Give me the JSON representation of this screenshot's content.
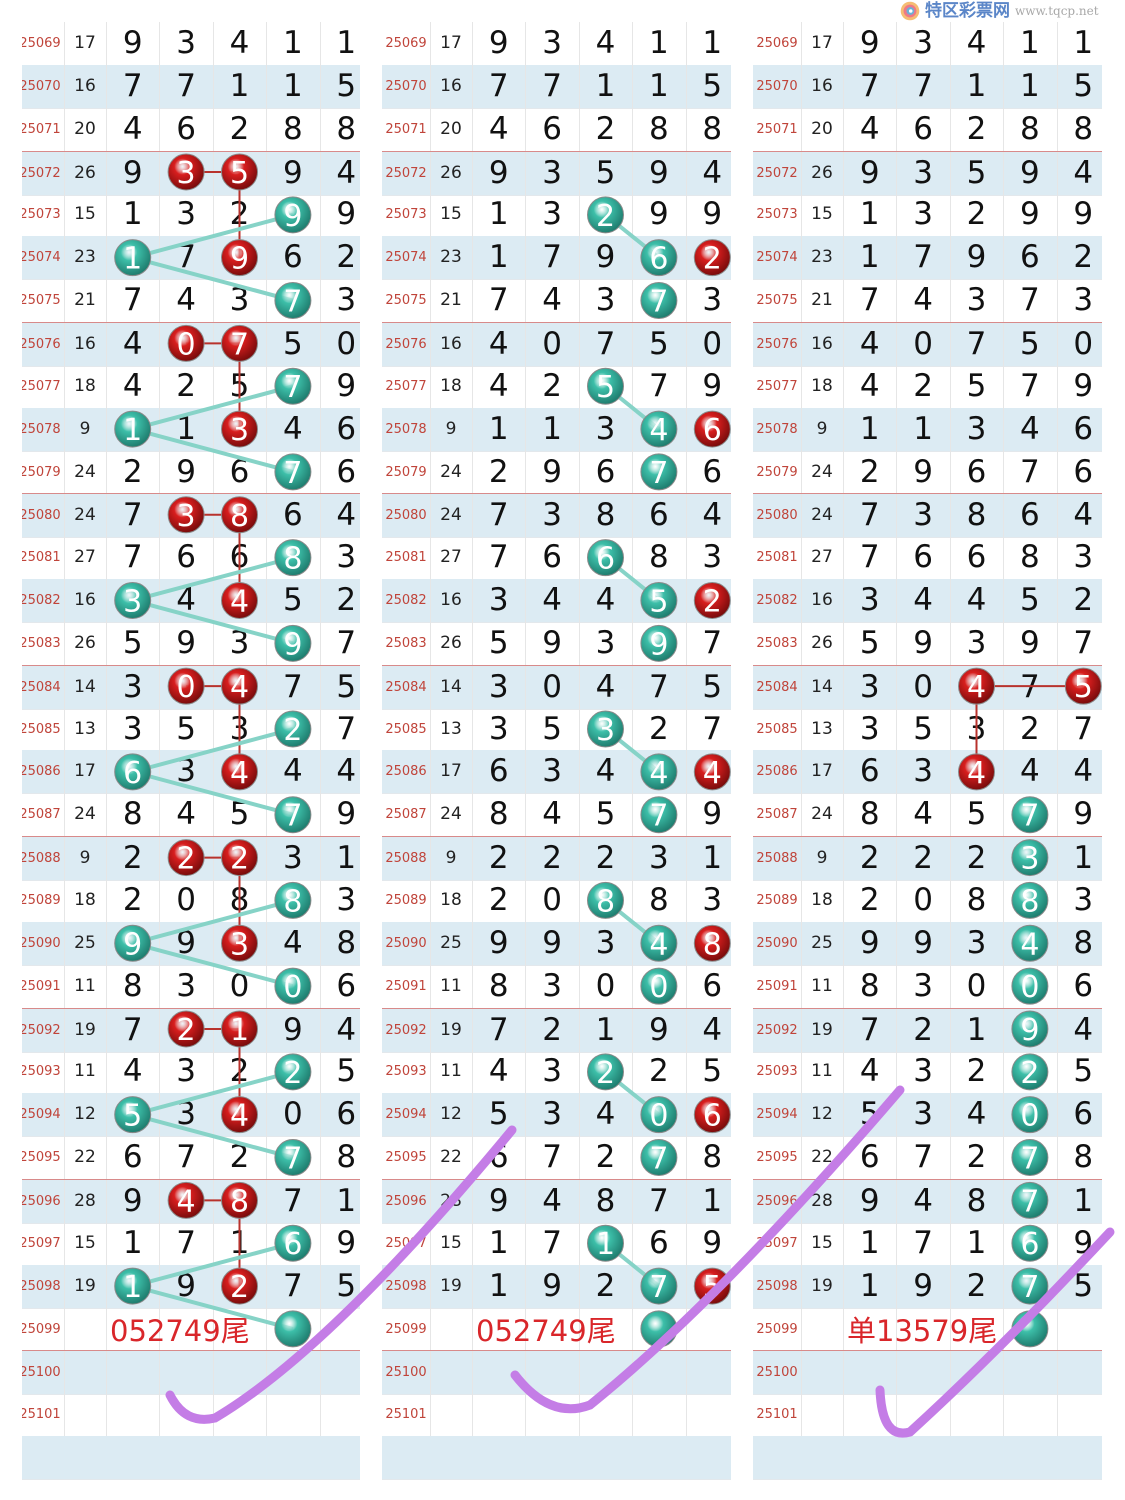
{
  "rows": [
    {
      "period": "25069",
      "sum": "17",
      "digits": [
        "9",
        "3",
        "4",
        "1",
        "1"
      ]
    },
    {
      "period": "25070",
      "sum": "16",
      "digits": [
        "7",
        "7",
        "1",
        "1",
        "5"
      ]
    },
    {
      "period": "25071",
      "sum": "20",
      "digits": [
        "4",
        "6",
        "2",
        "8",
        "8"
      ]
    },
    {
      "period": "25072",
      "sum": "26",
      "digits": [
        "9",
        "3",
        "5",
        "9",
        "4"
      ]
    },
    {
      "period": "25073",
      "sum": "15",
      "digits": [
        "1",
        "3",
        "2",
        "9",
        "9"
      ]
    },
    {
      "period": "25074",
      "sum": "23",
      "digits": [
        "1",
        "7",
        "9",
        "6",
        "2"
      ]
    },
    {
      "period": "25075",
      "sum": "21",
      "digits": [
        "7",
        "4",
        "3",
        "7",
        "3"
      ]
    },
    {
      "period": "25076",
      "sum": "16",
      "digits": [
        "4",
        "0",
        "7",
        "5",
        "0"
      ]
    },
    {
      "period": "25077",
      "sum": "18",
      "digits": [
        "4",
        "2",
        "5",
        "7",
        "9"
      ]
    },
    {
      "period": "25078",
      "sum": "9",
      "digits": [
        "1",
        "1",
        "3",
        "4",
        "6"
      ]
    },
    {
      "period": "25079",
      "sum": "24",
      "digits": [
        "2",
        "9",
        "6",
        "7",
        "6"
      ]
    },
    {
      "period": "25080",
      "sum": "24",
      "digits": [
        "7",
        "3",
        "8",
        "6",
        "4"
      ]
    },
    {
      "period": "25081",
      "sum": "27",
      "digits": [
        "7",
        "6",
        "6",
        "8",
        "3"
      ]
    },
    {
      "period": "25082",
      "sum": "16",
      "digits": [
        "3",
        "4",
        "4",
        "5",
        "2"
      ]
    },
    {
      "period": "25083",
      "sum": "26",
      "digits": [
        "5",
        "9",
        "3",
        "9",
        "7"
      ]
    },
    {
      "period": "25084",
      "sum": "14",
      "digits": [
        "3",
        "0",
        "4",
        "7",
        "5"
      ]
    },
    {
      "period": "25085",
      "sum": "13",
      "digits": [
        "3",
        "5",
        "3",
        "2",
        "7"
      ]
    },
    {
      "period": "25086",
      "sum": "17",
      "digits": [
        "6",
        "3",
        "4",
        "4",
        "4"
      ]
    },
    {
      "period": "25087",
      "sum": "24",
      "digits": [
        "8",
        "4",
        "5",
        "7",
        "9"
      ]
    },
    {
      "period": "25088",
      "sum": "9",
      "digits": [
        "2",
        "2",
        "2",
        "3",
        "1"
      ]
    },
    {
      "period": "25089",
      "sum": "18",
      "digits": [
        "2",
        "0",
        "8",
        "8",
        "3"
      ]
    },
    {
      "period": "25090",
      "sum": "25",
      "digits": [
        "9",
        "9",
        "3",
        "4",
        "8"
      ]
    },
    {
      "period": "25091",
      "sum": "11",
      "digits": [
        "8",
        "3",
        "0",
        "0",
        "6"
      ]
    },
    {
      "period": "25092",
      "sum": "19",
      "digits": [
        "7",
        "2",
        "1",
        "9",
        "4"
      ]
    },
    {
      "period": "25093",
      "sum": "11",
      "digits": [
        "4",
        "3",
        "2",
        "2",
        "5"
      ]
    },
    {
      "period": "25094",
      "sum": "12",
      "digits": [
        "5",
        "3",
        "4",
        "0",
        "6"
      ]
    },
    {
      "period": "25095",
      "sum": "22",
      "digits": [
        "6",
        "7",
        "2",
        "7",
        "8"
      ]
    },
    {
      "period": "25096",
      "sum": "28",
      "digits": [
        "9",
        "4",
        "8",
        "7",
        "1"
      ]
    },
    {
      "period": "25097",
      "sum": "15",
      "digits": [
        "1",
        "7",
        "1",
        "6",
        "9"
      ]
    },
    {
      "period": "25098",
      "sum": "19",
      "digits": [
        "1",
        "9",
        "2",
        "7",
        "5"
      ]
    },
    {
      "period": "25099",
      "sum": "",
      "digits": [
        "",
        "",
        "",
        "",
        ""
      ]
    },
    {
      "period": "25100",
      "sum": "",
      "digits": [
        "",
        "",
        "",
        "",
        ""
      ]
    },
    {
      "period": "25101",
      "sum": "",
      "digits": [
        "",
        "",
        "",
        "",
        ""
      ]
    }
  ],
  "colors": {
    "red": "#d81e1e",
    "teal": "#3dbfa9",
    "red_line": "#b8322c",
    "teal_line": "#86d3c7",
    "check": "#c47de6",
    "period": "#c0443a"
  },
  "logo": {
    "name": "特区彩票网",
    "url": "www.tqcp.net"
  },
  "panels": [
    {
      "note": "052749尾",
      "balls": [
        [
          "25072",
          1,
          "r"
        ],
        [
          "25072",
          2,
          "r"
        ],
        [
          "25073",
          3,
          "t"
        ],
        [
          "25074",
          0,
          "t"
        ],
        [
          "25074",
          2,
          "r"
        ],
        [
          "25075",
          3,
          "t"
        ],
        [
          "25076",
          1,
          "r"
        ],
        [
          "25076",
          2,
          "r"
        ],
        [
          "25077",
          3,
          "t"
        ],
        [
          "25078",
          0,
          "t"
        ],
        [
          "25078",
          2,
          "r"
        ],
        [
          "25079",
          3,
          "t"
        ],
        [
          "25080",
          1,
          "r"
        ],
        [
          "25080",
          2,
          "r"
        ],
        [
          "25081",
          3,
          "t"
        ],
        [
          "25082",
          0,
          "t"
        ],
        [
          "25082",
          2,
          "r"
        ],
        [
          "25083",
          3,
          "t"
        ],
        [
          "25084",
          1,
          "r"
        ],
        [
          "25084",
          2,
          "r"
        ],
        [
          "25085",
          3,
          "t"
        ],
        [
          "25086",
          0,
          "t"
        ],
        [
          "25086",
          2,
          "r"
        ],
        [
          "25087",
          3,
          "t"
        ],
        [
          "25088",
          1,
          "r"
        ],
        [
          "25088",
          2,
          "r"
        ],
        [
          "25089",
          3,
          "t"
        ],
        [
          "25090",
          0,
          "t"
        ],
        [
          "25090",
          2,
          "r"
        ],
        [
          "25091",
          3,
          "t"
        ],
        [
          "25092",
          1,
          "r"
        ],
        [
          "25092",
          2,
          "r"
        ],
        [
          "25093",
          3,
          "t"
        ],
        [
          "25094",
          0,
          "t"
        ],
        [
          "25094",
          2,
          "r"
        ],
        [
          "25095",
          3,
          "t"
        ],
        [
          "25096",
          1,
          "r"
        ],
        [
          "25096",
          2,
          "r"
        ],
        [
          "25097",
          3,
          "t"
        ],
        [
          "25098",
          0,
          "t"
        ],
        [
          "25098",
          2,
          "r"
        ],
        [
          "25099",
          3,
          "t"
        ]
      ],
      "links": [
        [
          "25072",
          1,
          "25072",
          2,
          "r"
        ],
        [
          "25072",
          2,
          "25074",
          2,
          "r"
        ],
        [
          "25073",
          3,
          "25074",
          0,
          "t"
        ],
        [
          "25074",
          0,
          "25075",
          3,
          "t"
        ],
        [
          "25076",
          1,
          "25076",
          2,
          "r"
        ],
        [
          "25076",
          2,
          "25078",
          2,
          "r"
        ],
        [
          "25077",
          3,
          "25078",
          0,
          "t"
        ],
        [
          "25078",
          0,
          "25079",
          3,
          "t"
        ],
        [
          "25080",
          1,
          "25080",
          2,
          "r"
        ],
        [
          "25080",
          2,
          "25082",
          2,
          "r"
        ],
        [
          "25081",
          3,
          "25082",
          0,
          "t"
        ],
        [
          "25082",
          0,
          "25083",
          3,
          "t"
        ],
        [
          "25084",
          1,
          "25084",
          2,
          "r"
        ],
        [
          "25084",
          2,
          "25086",
          2,
          "r"
        ],
        [
          "25085",
          3,
          "25086",
          0,
          "t"
        ],
        [
          "25086",
          0,
          "25087",
          3,
          "t"
        ],
        [
          "25088",
          1,
          "25088",
          2,
          "r"
        ],
        [
          "25088",
          2,
          "25090",
          2,
          "r"
        ],
        [
          "25089",
          3,
          "25090",
          0,
          "t"
        ],
        [
          "25090",
          0,
          "25091",
          3,
          "t"
        ],
        [
          "25092",
          1,
          "25092",
          2,
          "r"
        ],
        [
          "25092",
          2,
          "25094",
          2,
          "r"
        ],
        [
          "25093",
          3,
          "25094",
          0,
          "t"
        ],
        [
          "25094",
          0,
          "25095",
          3,
          "t"
        ],
        [
          "25096",
          1,
          "25096",
          2,
          "r"
        ],
        [
          "25096",
          2,
          "25098",
          2,
          "r"
        ],
        [
          "25097",
          3,
          "25098",
          0,
          "t"
        ],
        [
          "25098",
          0,
          "25099",
          3,
          "t"
        ]
      ]
    },
    {
      "note": "052749尾",
      "balls": [
        [
          "25073",
          2,
          "t"
        ],
        [
          "25074",
          3,
          "t"
        ],
        [
          "25074",
          4,
          "r"
        ],
        [
          "25075",
          3,
          "t"
        ],
        [
          "25077",
          2,
          "t"
        ],
        [
          "25078",
          3,
          "t"
        ],
        [
          "25078",
          4,
          "r"
        ],
        [
          "25079",
          3,
          "t"
        ],
        [
          "25081",
          2,
          "t"
        ],
        [
          "25082",
          3,
          "t"
        ],
        [
          "25082",
          4,
          "r"
        ],
        [
          "25083",
          3,
          "t"
        ],
        [
          "25085",
          2,
          "t"
        ],
        [
          "25086",
          3,
          "t"
        ],
        [
          "25086",
          4,
          "r"
        ],
        [
          "25087",
          3,
          "t"
        ],
        [
          "25089",
          2,
          "t"
        ],
        [
          "25090",
          3,
          "t"
        ],
        [
          "25090",
          4,
          "r"
        ],
        [
          "25091",
          3,
          "t"
        ],
        [
          "25093",
          2,
          "t"
        ],
        [
          "25094",
          3,
          "t"
        ],
        [
          "25094",
          4,
          "r"
        ],
        [
          "25095",
          3,
          "t"
        ],
        [
          "25097",
          2,
          "t"
        ],
        [
          "25098",
          3,
          "t"
        ],
        [
          "25098",
          4,
          "r"
        ],
        [
          "25099",
          3,
          "t"
        ]
      ],
      "links": [
        [
          "25073",
          2,
          "25074",
          3,
          "t"
        ],
        [
          "25077",
          2,
          "25078",
          3,
          "t"
        ],
        [
          "25081",
          2,
          "25082",
          3,
          "t"
        ],
        [
          "25085",
          2,
          "25086",
          3,
          "t"
        ],
        [
          "25089",
          2,
          "25090",
          3,
          "t"
        ],
        [
          "25093",
          2,
          "25094",
          3,
          "t"
        ],
        [
          "25097",
          2,
          "25098",
          3,
          "t"
        ]
      ]
    },
    {
      "note": "单13579尾",
      "balls": [
        [
          "25084",
          2,
          "r"
        ],
        [
          "25084",
          4,
          "r"
        ],
        [
          "25086",
          2,
          "r"
        ],
        [
          "25087",
          3,
          "t"
        ],
        [
          "25088",
          3,
          "t"
        ],
        [
          "25089",
          3,
          "t"
        ],
        [
          "25090",
          3,
          "t"
        ],
        [
          "25091",
          3,
          "t"
        ],
        [
          "25092",
          3,
          "t"
        ],
        [
          "25093",
          3,
          "t"
        ],
        [
          "25094",
          3,
          "t"
        ],
        [
          "25095",
          3,
          "t"
        ],
        [
          "25096",
          3,
          "t"
        ],
        [
          "25097",
          3,
          "t"
        ],
        [
          "25098",
          3,
          "t"
        ],
        [
          "25099",
          3,
          "t"
        ]
      ],
      "links": [
        [
          "25084",
          2,
          "25084",
          4,
          "r"
        ],
        [
          "25084",
          2,
          "25086",
          2,
          "r"
        ]
      ]
    }
  ]
}
